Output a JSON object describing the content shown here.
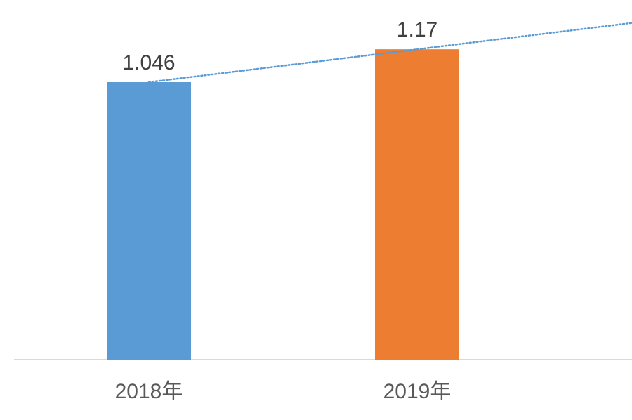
{
  "chart_data": {
    "type": "bar",
    "categories": [
      "2018年",
      "2019年"
    ],
    "values": [
      1.046,
      1.17
    ],
    "data_labels": [
      "1.046",
      "1.17"
    ],
    "bar_colors": [
      "#5B9BD5",
      "#ED7D31"
    ],
    "trendline": {
      "type": "linear",
      "style": "dotted",
      "color": "#5B9BD5"
    },
    "title": "",
    "xlabel": "",
    "ylabel": "",
    "ylim": [
      0,
      1.2
    ],
    "grid": false,
    "legend": "none"
  }
}
